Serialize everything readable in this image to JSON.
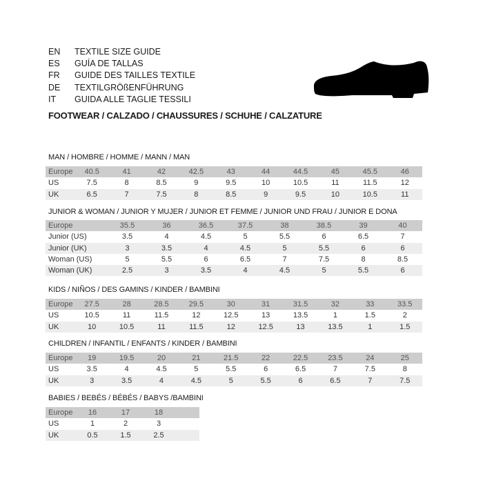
{
  "header": {
    "languages": [
      {
        "code": "EN",
        "text": "TEXTILE SIZE GUIDE"
      },
      {
        "code": "ES",
        "text": "GUÍA DE TALLAS"
      },
      {
        "code": "FR",
        "text": "GUIDE DES TAILLES TEXTILE"
      },
      {
        "code": "DE",
        "text": "TEXTILGRÖßENFÜHRUNG"
      },
      {
        "code": "IT",
        "text": "GUIDA ALLE TAGLIE TESSILI"
      }
    ],
    "footwear_title": "FOOTWEAR / CALZADO / CHAUSSURES / SCHUHE / CALZATURE",
    "icon": "shoe-icon"
  },
  "tables": [
    {
      "id": "man",
      "title": "MAN / HOMBRE / HOMME / MANN / MAN",
      "rows": [
        {
          "label": "Europe",
          "values": [
            "40.5",
            "41",
            "42",
            "42.5",
            "43",
            "44",
            "44.5",
            "45",
            "45.5",
            "46"
          ]
        },
        {
          "label": "US",
          "values": [
            "7.5",
            "8",
            "8.5",
            "9",
            "9.5",
            "10",
            "10.5",
            "11",
            "11.5",
            "12"
          ]
        },
        {
          "label": "UK",
          "values": [
            "6.5",
            "7",
            "7.5",
            "8",
            "8.5",
            "9",
            "9.5",
            "10",
            "10.5",
            "11"
          ]
        }
      ]
    },
    {
      "id": "junior-woman",
      "title": "JUNIOR & WOMAN / JUNIOR Y MUJER / JUNIOR ET FEMME / JUNIOR UND FRAU / JUNIOR E DONA",
      "rows": [
        {
          "label": "Europe",
          "values": [
            "35.5",
            "36",
            "36.5",
            "37.5",
            "38",
            "38.5",
            "39",
            "40"
          ]
        },
        {
          "label": "Junior (US)",
          "values": [
            "3.5",
            "4",
            "4.5",
            "5",
            "5.5",
            "6",
            "6.5",
            "7"
          ]
        },
        {
          "label": "Junior (UK)",
          "values": [
            "3",
            "3.5",
            "4",
            "4.5",
            "5",
            "5.5",
            "6",
            "6"
          ]
        },
        {
          "label": "Woman (US)",
          "values": [
            "5",
            "5.5",
            "6",
            "6.5",
            "7",
            "7.5",
            "8",
            "8.5"
          ]
        },
        {
          "label": "Woman (UK)",
          "values": [
            "2.5",
            "3",
            "3.5",
            "4",
            "4.5",
            "5",
            "5.5",
            "6"
          ]
        }
      ]
    },
    {
      "id": "kids",
      "title": "KIDS / NIÑOS / DES GAMINS / KINDER / BAMBINI",
      "rows": [
        {
          "label": "Europe",
          "values": [
            "27.5",
            "28",
            "28.5",
            "29.5",
            "30",
            "31",
            "31.5",
            "32",
            "33",
            "33.5"
          ]
        },
        {
          "label": "US",
          "values": [
            "10.5",
            "11",
            "11.5",
            "12",
            "12.5",
            "13",
            "13.5",
            "1",
            "1.5",
            "2"
          ]
        },
        {
          "label": "UK",
          "values": [
            "10",
            "10.5",
            "11",
            "11.5",
            "12",
            "12.5",
            "13",
            "13.5",
            "1",
            "1.5"
          ]
        }
      ]
    },
    {
      "id": "children",
      "title": "CHILDREN / INFANTIL / ENFANTS / KINDER / BAMBINI",
      "rows": [
        {
          "label": "Europe",
          "values": [
            "19",
            "19.5",
            "20",
            "21",
            "21.5",
            "22",
            "22.5",
            "23.5",
            "24",
            "25"
          ]
        },
        {
          "label": "US",
          "values": [
            "3.5",
            "4",
            "4.5",
            "5",
            "5.5",
            "6",
            "6.5",
            "7",
            "7.5",
            "8"
          ]
        },
        {
          "label": "UK",
          "values": [
            "3",
            "3.5",
            "4",
            "4.5",
            "5",
            "5.5",
            "6",
            "6.5",
            "7",
            "7.5"
          ]
        }
      ]
    },
    {
      "id": "babies",
      "title": "BABIES  / BEBÉS / BÉBÉS / BABYS /BAMBINI",
      "rows": [
        {
          "label": "Europe",
          "values": [
            "16",
            "17",
            "18"
          ]
        },
        {
          "label": "US",
          "values": [
            "1",
            "2",
            "3"
          ]
        },
        {
          "label": "UK",
          "values": [
            "0.5",
            "1.5",
            "2.5"
          ]
        }
      ]
    }
  ]
}
